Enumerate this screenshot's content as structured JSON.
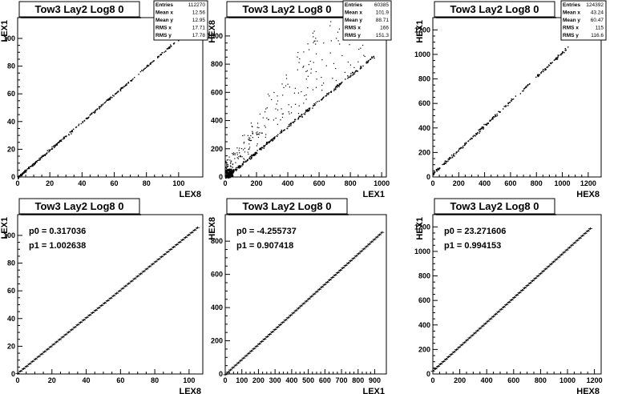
{
  "chart_data": [
    {
      "type": "scatter",
      "title": "Tow3 Lay2 Log8 0",
      "xlabel": "LEX8",
      "ylabel": "LEX1",
      "xlim": [
        0,
        115
      ],
      "ylim": [
        0,
        115
      ],
      "xticks": [
        "0",
        "20",
        "40",
        "60",
        "80",
        "100"
      ],
      "yticks": [
        "0",
        "20",
        "40",
        "60",
        "80",
        "100"
      ],
      "stats": {
        "Entries": "112270",
        "Mean x": "12.56",
        "Mean y": "12.95",
        "RMS x": "17.71",
        "RMS y": "17.78"
      },
      "series": [
        {
          "x": [
            0,
            100
          ],
          "y": [
            0,
            100
          ]
        }
      ]
    },
    {
      "type": "scatter",
      "title": "Tow3 Lay2 Log8 0",
      "xlabel": "LEX1",
      "ylabel": "HEX8",
      "xlim": [
        0,
        1030
      ],
      "ylim": [
        0,
        1130
      ],
      "xticks": [
        "0",
        "200",
        "400",
        "600",
        "800",
        "1000"
      ],
      "yticks": [
        "0",
        "200",
        "400",
        "600",
        "800",
        "1000"
      ],
      "stats": {
        "Entries": "60385",
        "Mean x": "101.9",
        "Mean y": "88.71",
        "RMS x": "166",
        "RMS y": "151.3"
      },
      "series": [
        {
          "x": [
            0,
            950
          ],
          "y": [
            0,
            860
          ]
        }
      ]
    },
    {
      "type": "scatter",
      "title": "Tow3 Lay2 Log8 0",
      "xlabel": "HEX8",
      "ylabel": "HEX1",
      "xlim": [
        0,
        1300
      ],
      "ylim": [
        0,
        1300
      ],
      "xticks": [
        "0",
        "200",
        "400",
        "600",
        "800",
        "1000",
        "1200"
      ],
      "yticks": [
        "0",
        "200",
        "400",
        "600",
        "800",
        "1000",
        "1200"
      ],
      "stats": {
        "Entries": "124392",
        "Mean x": "43.24",
        "Mean y": "60.47",
        "RMS x": "115",
        "RMS y": "116.6"
      },
      "series": [
        {
          "x": [
            0,
            1040
          ],
          "y": [
            30,
            1060
          ]
        }
      ]
    },
    {
      "type": "line",
      "title": "Tow3 Lay2 Log8 0",
      "xlabel": "LEX8",
      "ylabel": "LEX1",
      "xlim": [
        0,
        108
      ],
      "ylim": [
        0,
        115
      ],
      "xticks": [
        "0",
        "20",
        "40",
        "60",
        "80",
        "100"
      ],
      "yticks": [
        "0",
        "20",
        "40",
        "60",
        "80",
        "100"
      ],
      "annotations": [
        "p0 = 0.317036",
        "p1 = 1.002638"
      ],
      "fit": {
        "p0": 0.317036,
        "p1": 1.002638
      },
      "series": [
        {
          "x": [
            0,
            105
          ],
          "y": [
            0.317,
            105.6
          ]
        }
      ]
    },
    {
      "type": "line",
      "title": "Tow3 Lay2 Log8 0",
      "xlabel": "LEX1",
      "ylabel": "HEX8",
      "xlim": [
        0,
        970
      ],
      "ylim": [
        0,
        960
      ],
      "xticks": [
        "0",
        "100",
        "200",
        "300",
        "400",
        "500",
        "600",
        "700",
        "800",
        "900"
      ],
      "yticks": [
        "0",
        "200",
        "400",
        "600",
        "800"
      ],
      "annotations": [
        "p0 = -4.255737",
        "p1 = 0.907418"
      ],
      "fit": {
        "p0": -4.255737,
        "p1": 0.907418
      },
      "series": [
        {
          "x": [
            0,
            945
          ],
          "y": [
            -4.26,
            853.3
          ]
        }
      ]
    },
    {
      "type": "line",
      "title": "Tow3 Lay2 Log8 0",
      "xlabel": "HEX8",
      "ylabel": "HEX1",
      "xlim": [
        0,
        1250
      ],
      "ylim": [
        0,
        1300
      ],
      "xticks": [
        "0",
        "200",
        "400",
        "600",
        "800",
        "1000",
        "1200"
      ],
      "yticks": [
        "0",
        "200",
        "400",
        "600",
        "800",
        "1000",
        "1200"
      ],
      "annotations": [
        "p0 = 23.271606",
        "p1 = 0.994153"
      ],
      "fit": {
        "p0": 23.271606,
        "p1": 0.994153
      },
      "series": [
        {
          "x": [
            0,
            1170
          ],
          "y": [
            23.27,
            1186.4
          ]
        }
      ]
    }
  ]
}
